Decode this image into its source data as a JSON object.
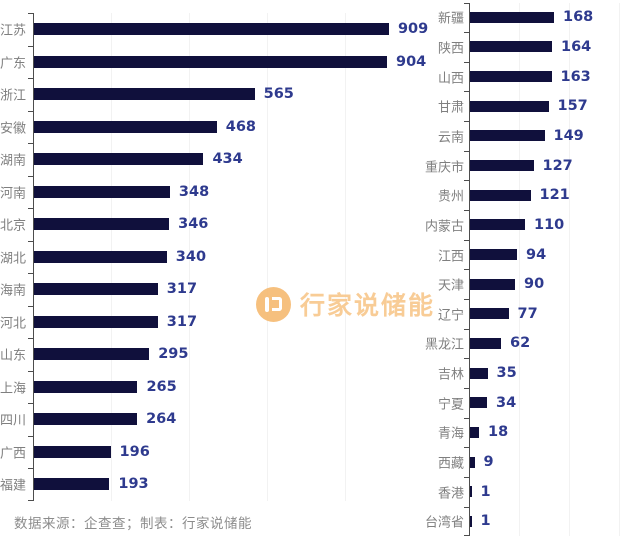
{
  "watermark": {
    "text": "行家说储能"
  },
  "footer": {
    "note": "数据来源：企查查；制表：行家说储能"
  },
  "colors": {
    "background": "#ffffff",
    "bar": "#10103c",
    "value_label": "#2e3a8e",
    "category_label": "#7f7f7f",
    "axis": "#4d4d4d",
    "gridline": "#f2f2f2",
    "watermark_circle": "#f6bb74",
    "watermark_text": "#f8c88e",
    "note": "#8c8c8c"
  },
  "chart_data": [
    {
      "type": "bar",
      "orientation": "horizontal",
      "panel": "left",
      "categories": [
        "江苏",
        "广东",
        "浙江",
        "安徽",
        "湖南",
        "河南",
        "北京",
        "湖北",
        "海南",
        "河北",
        "山东",
        "上海",
        "四川",
        "广西",
        "福建"
      ],
      "values": [
        909,
        904,
        565,
        468,
        434,
        348,
        346,
        340,
        317,
        317,
        295,
        265,
        264,
        196,
        193
      ],
      "value_labels_position": "end",
      "xlim": [
        0,
        1000
      ],
      "grid": true,
      "legend": false,
      "title": ""
    },
    {
      "type": "bar",
      "orientation": "horizontal",
      "panel": "right",
      "categories": [
        "新疆",
        "陕西",
        "山西",
        "甘肃",
        "云南",
        "重庆市",
        "贵州",
        "内蒙古",
        "江西",
        "天津",
        "辽宁",
        "黑龙江",
        "吉林",
        "宁夏",
        "青海",
        "西藏",
        "香港",
        "台湾省"
      ],
      "values": [
        168,
        164,
        163,
        157,
        149,
        127,
        121,
        110,
        94,
        90,
        77,
        62,
        35,
        34,
        18,
        9,
        1,
        1
      ],
      "value_labels_position": "end",
      "xlim": [
        0,
        300
      ],
      "grid": true,
      "legend": false,
      "title": ""
    }
  ]
}
